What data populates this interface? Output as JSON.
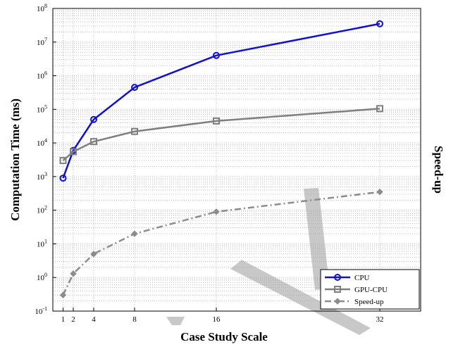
{
  "chart_data": {
    "type": "line",
    "xlabel": "Case Study Scale",
    "ylabel": "Computation Time (ms)",
    "ylabel_right": "Speed-up",
    "x": [
      1,
      2,
      4,
      8,
      16,
      32
    ],
    "x_ticks": [
      1,
      2,
      4,
      8,
      16,
      32
    ],
    "xlim": [
      0,
      36
    ],
    "y_scale": "log",
    "ylim": [
      0.1,
      100000000
    ],
    "y_tick_exponents": [
      -1,
      0,
      1,
      2,
      3,
      4,
      5,
      6,
      7,
      8
    ],
    "grid": true,
    "legend_position": "lower-right",
    "series": [
      {
        "name": "CPU",
        "values": [
          900,
          6000,
          50000,
          450000,
          4000000,
          35000000
        ],
        "color": "#1010d8",
        "marker": "circle",
        "dash": "solid"
      },
      {
        "name": "GPU-CPU",
        "values": [
          3000,
          5500,
          11000,
          22000,
          45000,
          105000
        ],
        "color": "#7f7f7f",
        "marker": "square",
        "dash": "solid"
      },
      {
        "name": "Speed-up",
        "values": [
          0.3,
          1.3,
          5,
          20,
          90,
          350
        ],
        "color": "#8c8c8c",
        "marker": "diamond",
        "dash": "dashdot"
      }
    ]
  },
  "colors": {
    "watermark": "#c8c8c8"
  }
}
